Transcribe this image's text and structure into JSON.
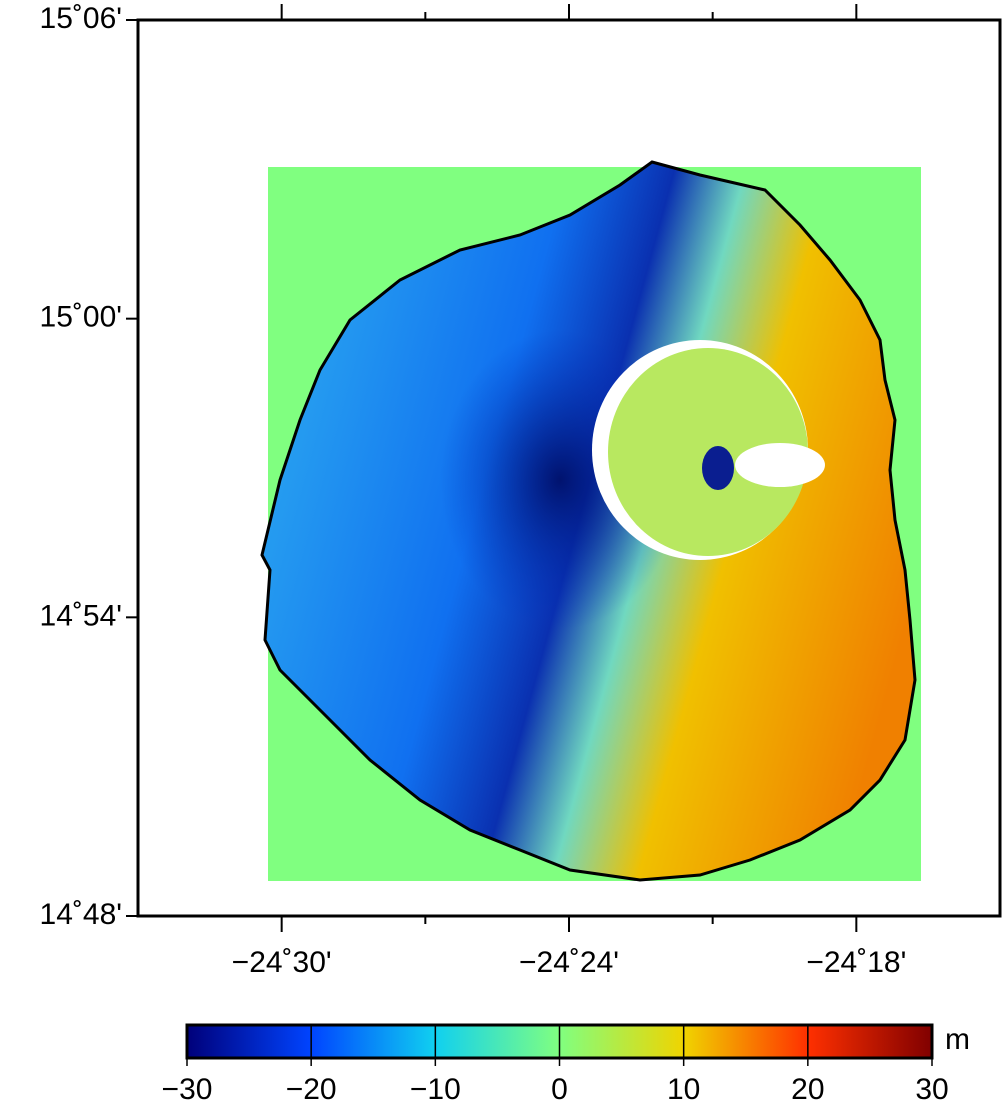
{
  "map": {
    "xlim": [
      -24.55,
      -24.25
    ],
    "ylim": [
      14.8,
      15.1
    ],
    "xticks": [
      {
        "value": -24.5,
        "label": "−24˚30'"
      },
      {
        "value": -24.4,
        "label": "−24˚24'"
      },
      {
        "value": -24.3,
        "label": "−24˚18'"
      }
    ],
    "minor_xticks": [
      -24.45,
      -24.35
    ],
    "yticks": [
      {
        "value": 14.8,
        "label": "14˚48'"
      },
      {
        "value": 14.9,
        "label": "14˚54'"
      },
      {
        "value": 15.0,
        "label": "15˚00'"
      },
      {
        "value": 15.1,
        "label": "15˚06'"
      }
    ]
  },
  "colorbar": {
    "unit": "m",
    "clim": [
      -30,
      30
    ],
    "ticks": [
      {
        "value": -30,
        "label": "−30"
      },
      {
        "value": -20,
        "label": "−20"
      },
      {
        "value": -10,
        "label": "−10"
      },
      0,
      10,
      20,
      30
    ],
    "colors": [
      "#00007a",
      "#0044ff",
      "#10d0f0",
      "#80ff80",
      "#f0d400",
      "#ff3000",
      "#800000"
    ]
  }
}
